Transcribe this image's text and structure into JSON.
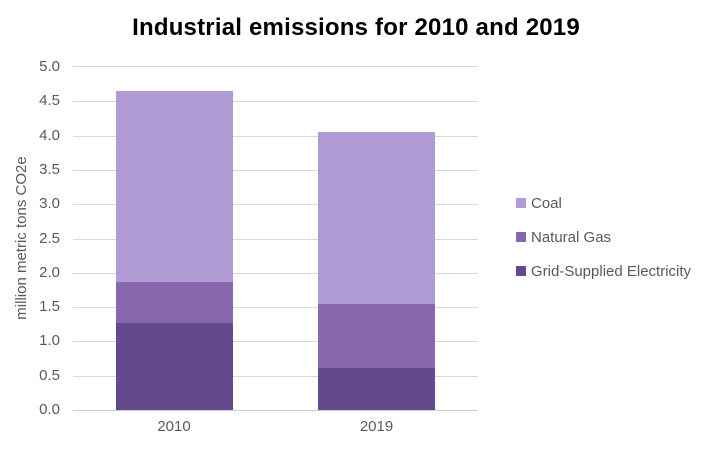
{
  "chart_data": {
    "type": "bar",
    "stacked": true,
    "title": "Industrial emissions for 2010 and 2019",
    "ylabel": "million metric tons CO2e",
    "xlabel": "",
    "categories": [
      "2010",
      "2019"
    ],
    "series": [
      {
        "name": "Coal",
        "values": [
          2.78,
          2.51
        ],
        "color": "#b09bd7"
      },
      {
        "name": "Natural Gas",
        "values": [
          0.6,
          0.94
        ],
        "color": "#8767ae"
      },
      {
        "name": "Grid-Supplied Electricity",
        "values": [
          1.27,
          0.61
        ],
        "color": "#65498f"
      }
    ],
    "totals": [
      4.65,
      4.06
    ],
    "ylim": [
      0,
      5
    ],
    "ytick_step": 0.5,
    "ytick_labels": [
      "0.0",
      "0.5",
      "1.0",
      "1.5",
      "2.0",
      "2.5",
      "3.0",
      "3.5",
      "4.0",
      "4.5",
      "5.0"
    ],
    "grid": true,
    "legend_position": "right",
    "colors": {
      "gridline": "#d9d9d9",
      "axis_line": "#cfcad6",
      "axis_text": "#595959",
      "title_text": "#000000",
      "background": "#ffffff"
    }
  }
}
